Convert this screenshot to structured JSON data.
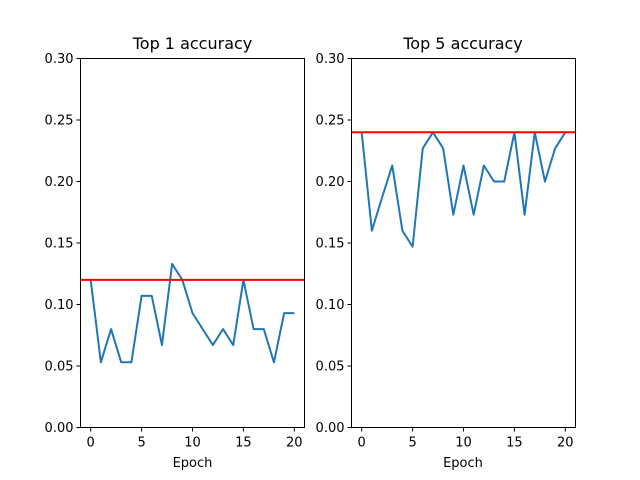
{
  "chart_data": [
    {
      "type": "line",
      "title": "Top 1 accuracy",
      "xlabel": "Epoch",
      "ylabel": "",
      "xlim": [
        -1,
        21
      ],
      "ylim": [
        0.0,
        0.3
      ],
      "xticks": [
        0,
        5,
        10,
        15,
        20
      ],
      "yticks": [
        0.0,
        0.05,
        0.1,
        0.15,
        0.2,
        0.25,
        0.3
      ],
      "ytick_labels": [
        "0.00",
        "0.05",
        "0.10",
        "0.15",
        "0.20",
        "0.25",
        "0.30"
      ],
      "series": [
        {
          "color": "#1f77b4",
          "x": [
            0,
            1,
            2,
            3,
            4,
            5,
            6,
            7,
            8,
            9,
            10,
            11,
            12,
            13,
            14,
            15,
            16,
            17,
            18,
            19,
            20
          ],
          "y": [
            0.12,
            0.053,
            0.08,
            0.053,
            0.053,
            0.107,
            0.107,
            0.067,
            0.133,
            0.12,
            0.093,
            0.08,
            0.067,
            0.08,
            0.067,
            0.12,
            0.08,
            0.08,
            0.053,
            0.093,
            0.093
          ]
        }
      ],
      "hlines": [
        {
          "y": 0.12,
          "color": "#ff0000"
        }
      ],
      "grid": false
    },
    {
      "type": "line",
      "title": "Top 5 accuracy",
      "xlabel": "Epoch",
      "ylabel": "",
      "xlim": [
        -1,
        21
      ],
      "ylim": [
        0.0,
        0.3
      ],
      "xticks": [
        0,
        5,
        10,
        15,
        20
      ],
      "yticks": [
        0.0,
        0.05,
        0.1,
        0.15,
        0.2,
        0.25,
        0.3
      ],
      "ytick_labels": [
        "0.00",
        "0.05",
        "0.10",
        "0.15",
        "0.20",
        "0.25",
        "0.30"
      ],
      "series": [
        {
          "color": "#1f77b4",
          "x": [
            0,
            1,
            2,
            3,
            4,
            5,
            6,
            7,
            8,
            9,
            10,
            11,
            12,
            13,
            14,
            15,
            16,
            17,
            18,
            19,
            20
          ],
          "y": [
            0.24,
            0.16,
            0.187,
            0.213,
            0.16,
            0.147,
            0.227,
            0.24,
            0.227,
            0.173,
            0.213,
            0.173,
            0.213,
            0.2,
            0.2,
            0.24,
            0.173,
            0.24,
            0.2,
            0.227,
            0.24
          ]
        }
      ],
      "hlines": [
        {
          "y": 0.24,
          "color": "#ff0000"
        }
      ],
      "grid": false
    }
  ]
}
